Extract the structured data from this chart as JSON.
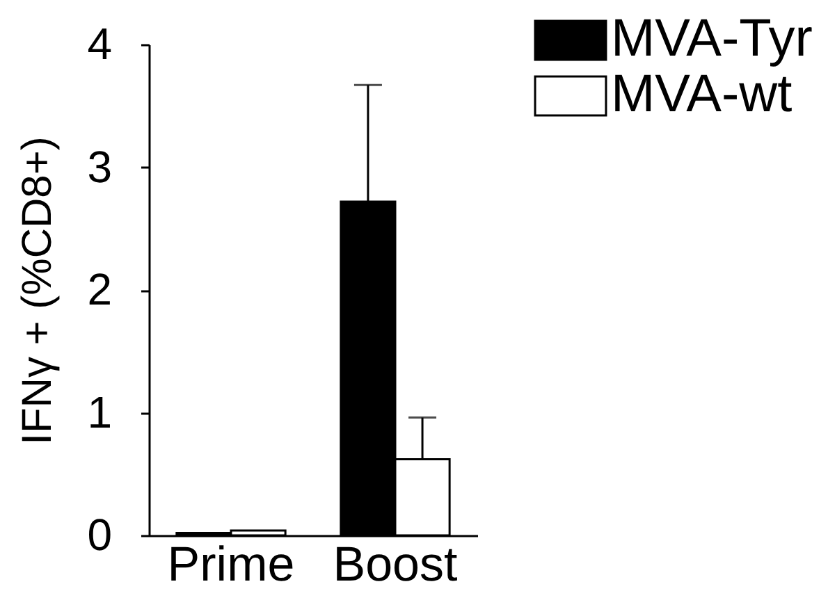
{
  "chart_data": {
    "type": "bar",
    "ylabel": "IFNγ + (%CD8+)",
    "categories": [
      "Prime",
      "Boost"
    ],
    "series": [
      {
        "name": "MVA-Tyr",
        "color": "#000000",
        "values": [
          0.02,
          2.72
        ],
        "errors": [
          null,
          [
            2.72,
            3.67
          ]
        ]
      },
      {
        "name": "MVA-wt",
        "color": "#ffffff",
        "values": [
          0.04,
          0.62
        ],
        "errors": [
          null,
          [
            0.62,
            0.96
          ]
        ]
      }
    ],
    "ylim": [
      0,
      4
    ],
    "yticks": [
      0,
      1,
      2,
      3,
      4
    ],
    "grid": false,
    "legend": "top right"
  }
}
